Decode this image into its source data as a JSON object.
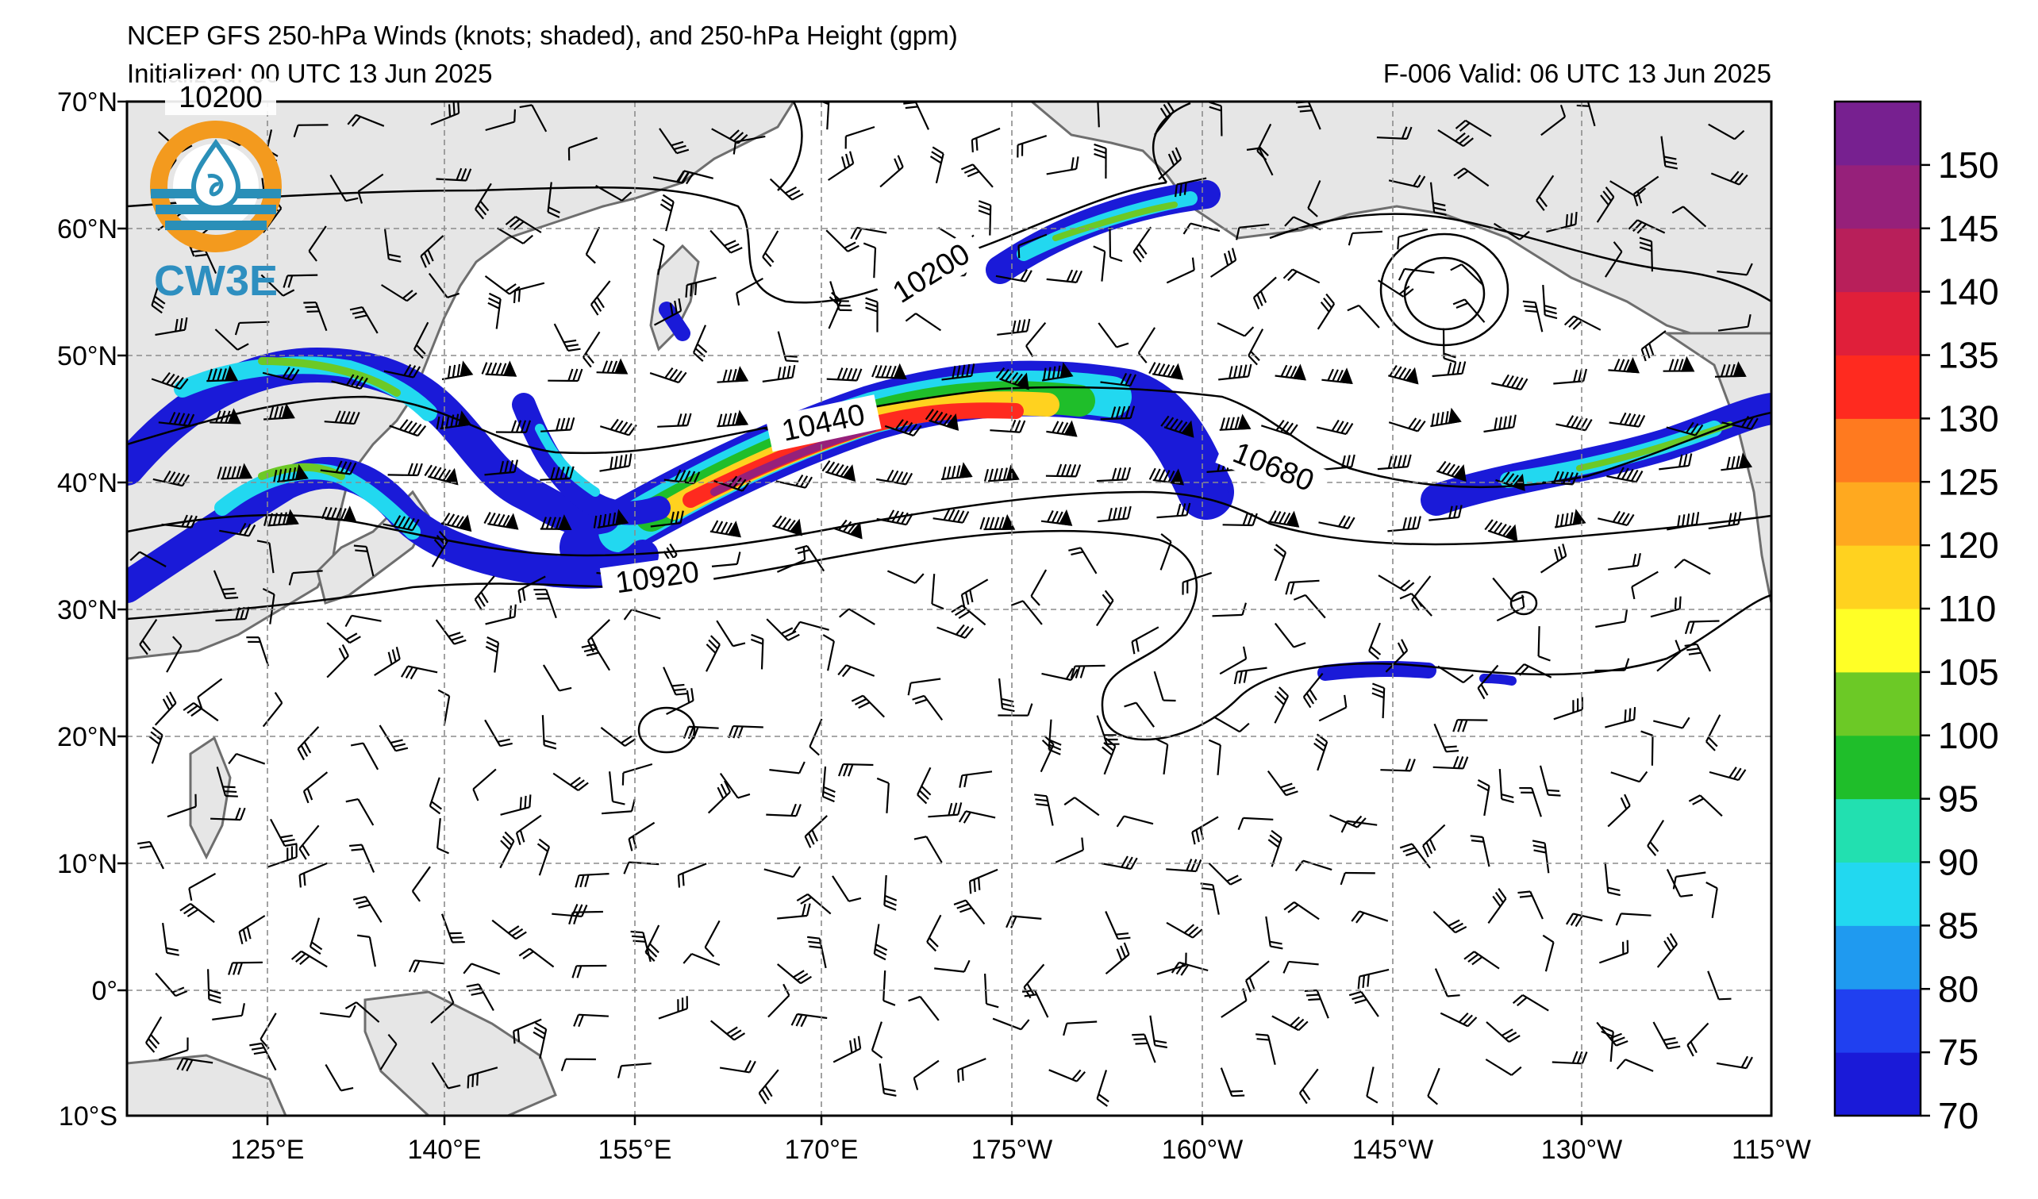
{
  "header": {
    "title": "NCEP GFS 250-hPa Winds (knots; shaded), and 250-hPa Height (gpm)",
    "initialized": "Initialized: 00 UTC 13 Jun 2025",
    "valid": "F-006  Valid: 06 UTC 13 Jun 2025"
  },
  "logo": {
    "text": "CW3E",
    "colors": {
      "ring": "#f39a1e",
      "waves": "#2a8fb8",
      "text": "#2e8fc0"
    }
  },
  "map": {
    "lon_ticks": [
      "125°E",
      "140°E",
      "155°E",
      "170°E",
      "175°W",
      "160°W",
      "145°W",
      "130°W",
      "115°W"
    ],
    "lat_ticks": [
      "70°N",
      "60°N",
      "50°N",
      "40°N",
      "30°N",
      "20°N",
      "10°N",
      "0°",
      "10°S"
    ],
    "contour_labels": [
      "10200",
      "10200",
      "10440",
      "10680",
      "10920"
    ],
    "land_color": "#e6e6e6",
    "coast_color": "#6e6e6e"
  },
  "colorbar": {
    "ticks": [
      "150",
      "145",
      "140",
      "135",
      "130",
      "125",
      "120",
      "110",
      "105",
      "100",
      "95",
      "90",
      "85",
      "80",
      "75",
      "70"
    ],
    "colors": [
      "#1a1ad8",
      "#2040f0",
      "#1f9af0",
      "#22d8f0",
      "#22e0b0",
      "#1fbe2a",
      "#6cc926",
      "#ffff26",
      "#ffd21f",
      "#ffa91f",
      "#ff7a1f",
      "#ff2a1f",
      "#e01f3a",
      "#b81f5a",
      "#96207a",
      "#772090"
    ]
  }
}
